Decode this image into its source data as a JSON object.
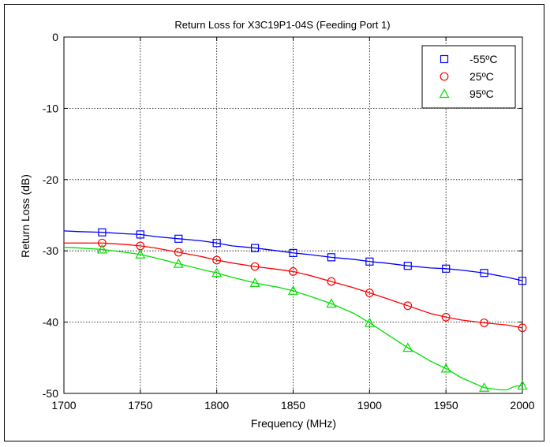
{
  "chart_data": {
    "type": "line",
    "title": "Return Loss for X3C19P1-04S (Feeding Port 1)",
    "xlabel": "Frequency (MHz)",
    "ylabel": "Return Loss (dB)",
    "xlim": [
      1700,
      2000
    ],
    "ylim": [
      -50,
      0
    ],
    "x_ticks": [
      1700,
      1750,
      1800,
      1850,
      1900,
      1950,
      2000
    ],
    "y_ticks": [
      0,
      -10,
      -20,
      -30,
      -40,
      -50
    ],
    "grid": true,
    "legend_position": "top-right",
    "marker_x": [
      1725,
      1750,
      1775,
      1800,
      1825,
      1850,
      1875,
      1900,
      1925,
      1950,
      1975,
      2000
    ],
    "series": [
      {
        "name": "-55ºC",
        "color": "#0000ff",
        "marker": "square",
        "x": [
          1700,
          1710,
          1725,
          1740,
          1750,
          1760,
          1775,
          1790,
          1800,
          1810,
          1825,
          1840,
          1850,
          1860,
          1875,
          1890,
          1900,
          1910,
          1925,
          1940,
          1950,
          1960,
          1975,
          1990,
          2000
        ],
        "y": [
          -27.2,
          -27.3,
          -27.4,
          -27.6,
          -27.7,
          -28.0,
          -28.3,
          -28.6,
          -28.9,
          -29.3,
          -29.6,
          -30.0,
          -30.3,
          -30.5,
          -30.9,
          -31.2,
          -31.5,
          -31.7,
          -32.1,
          -32.4,
          -32.5,
          -32.7,
          -33.1,
          -33.7,
          -34.2
        ],
        "marker_values": [
          -27.4,
          -27.7,
          -28.3,
          -28.9,
          -29.6,
          -30.3,
          -30.9,
          -31.5,
          -32.1,
          -32.5,
          -33.1,
          -34.2
        ]
      },
      {
        "name": "25ºC",
        "color": "#ff0000",
        "marker": "circle",
        "x": [
          1700,
          1710,
          1725,
          1740,
          1750,
          1760,
          1775,
          1790,
          1800,
          1810,
          1825,
          1840,
          1850,
          1860,
          1875,
          1890,
          1900,
          1910,
          1925,
          1940,
          1950,
          1960,
          1975,
          1990,
          2000
        ],
        "y": [
          -28.9,
          -28.9,
          -28.9,
          -29.1,
          -29.3,
          -29.6,
          -30.2,
          -30.8,
          -31.3,
          -31.7,
          -32.2,
          -32.6,
          -32.9,
          -33.4,
          -34.3,
          -35.2,
          -35.9,
          -36.6,
          -37.7,
          -38.8,
          -39.3,
          -39.7,
          -40.1,
          -40.4,
          -40.8
        ],
        "marker_values": [
          -28.9,
          -29.3,
          -30.2,
          -31.3,
          -32.2,
          -32.9,
          -34.3,
          -35.9,
          -37.7,
          -39.3,
          -40.1,
          -40.8
        ]
      },
      {
        "name": "95ºC",
        "color": "#00e000",
        "marker": "triangle",
        "x": [
          1700,
          1710,
          1725,
          1740,
          1750,
          1760,
          1775,
          1790,
          1800,
          1810,
          1825,
          1840,
          1850,
          1860,
          1875,
          1890,
          1900,
          1910,
          1925,
          1940,
          1950,
          1960,
          1975,
          1985,
          1990,
          1995,
          2000
        ],
        "y": [
          -29.5,
          -29.6,
          -29.8,
          -30.2,
          -30.5,
          -31.0,
          -31.8,
          -32.6,
          -33.1,
          -33.7,
          -34.5,
          -35.1,
          -35.6,
          -36.3,
          -37.4,
          -38.8,
          -40.1,
          -41.5,
          -43.6,
          -45.5,
          -46.5,
          -47.8,
          -49.2,
          -49.5,
          -49.5,
          -49.0,
          -48.9
        ],
        "marker_values": [
          -29.8,
          -30.5,
          -31.8,
          -33.1,
          -34.5,
          -35.6,
          -37.4,
          -40.1,
          -43.6,
          -46.5,
          -49.2,
          -48.9
        ]
      }
    ]
  }
}
